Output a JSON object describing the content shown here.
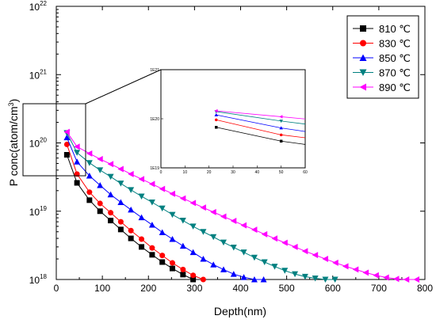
{
  "chart_data": {
    "type": "line",
    "xlabel": "Depth(nm)",
    "ylabel": "P conc(atom/cm^3)",
    "xlim": [
      0,
      800
    ],
    "ylim": [
      1e+18,
      1e+22
    ],
    "yscale": "log",
    "x_ticks": [
      "0",
      "100",
      "200",
      "300",
      "400",
      "500",
      "600",
      "700",
      "800"
    ],
    "y_ticks": [
      {
        "base": "10",
        "exp": "18"
      },
      {
        "base": "10",
        "exp": "19"
      },
      {
        "base": "10",
        "exp": "20"
      },
      {
        "base": "10",
        "exp": "21"
      },
      {
        "base": "10",
        "exp": "22"
      }
    ],
    "legend_position": "top-right",
    "series": [
      {
        "name": "810 ℃",
        "color": "#000000",
        "marker": "square",
        "points": [
          [
            23,
            6.7e+19
          ],
          [
            45,
            2.6e+19
          ],
          [
            72,
            1.45e+19
          ],
          [
            95,
            1e+19
          ],
          [
            118,
            7.3e+18
          ],
          [
            140,
            5.4e+18
          ],
          [
            162,
            4e+18
          ],
          [
            185,
            3e+18
          ],
          [
            208,
            2.3e+18
          ],
          [
            230,
            1.8e+18
          ],
          [
            252,
            1.45e+18
          ],
          [
            275,
            1.18e+18
          ],
          [
            297,
            1e+18
          ]
        ]
      },
      {
        "name": "830 ℃",
        "color": "#ff0000",
        "marker": "circle",
        "points": [
          [
            23,
            9.5e+19
          ],
          [
            45,
            3.5e+19
          ],
          [
            72,
            1.9e+19
          ],
          [
            95,
            1.3e+19
          ],
          [
            118,
            9.5e+18
          ],
          [
            140,
            7e+18
          ],
          [
            162,
            5.2e+18
          ],
          [
            185,
            3.9e+18
          ],
          [
            208,
            2.9e+18
          ],
          [
            230,
            2.25e+18
          ],
          [
            252,
            1.75e+18
          ],
          [
            275,
            1.4e+18
          ],
          [
            297,
            1.15e+18
          ],
          [
            319,
            1e+18
          ]
        ]
      },
      {
        "name": "850 ℃",
        "color": "#0000ff",
        "marker": "triangle-up",
        "points": [
          [
            23,
            1.2e+20
          ],
          [
            45,
            5.3e+19
          ],
          [
            72,
            3.3e+19
          ],
          [
            95,
            2.4e+19
          ],
          [
            118,
            1.75e+19
          ],
          [
            140,
            1.35e+19
          ],
          [
            162,
            1.05e+19
          ],
          [
            185,
            8.1e+18
          ],
          [
            208,
            6.3e+18
          ],
          [
            230,
            4.9e+18
          ],
          [
            252,
            3.9e+18
          ],
          [
            275,
            3.1e+18
          ],
          [
            297,
            2.5e+18
          ],
          [
            319,
            2e+18
          ],
          [
            341,
            1.65e+18
          ],
          [
            363,
            1.4e+18
          ],
          [
            385,
            1.2e+18
          ],
          [
            407,
            1.08e+18
          ],
          [
            430,
            1e+18
          ],
          [
            450,
            1e+18
          ]
        ]
      },
      {
        "name": "870 ℃",
        "color": "#008080",
        "marker": "triangle-down",
        "points": [
          [
            23,
            1.4e+20
          ],
          [
            45,
            7.2e+19
          ],
          [
            72,
            5.1e+19
          ],
          [
            95,
            4e+19
          ],
          [
            118,
            3.2e+19
          ],
          [
            140,
            2.55e+19
          ],
          [
            162,
            2.05e+19
          ],
          [
            185,
            1.65e+19
          ],
          [
            208,
            1.35e+19
          ],
          [
            230,
            1.1e+19
          ],
          [
            252,
            8.9e+18
          ],
          [
            275,
            7.3e+18
          ],
          [
            297,
            6e+18
          ],
          [
            319,
            5e+18
          ],
          [
            341,
            4.2e+18
          ],
          [
            363,
            3.5e+18
          ],
          [
            385,
            2.95e+18
          ],
          [
            407,
            2.5e+18
          ],
          [
            430,
            2.1e+18
          ],
          [
            452,
            1.8e+18
          ],
          [
            474,
            1.55e+18
          ],
          [
            496,
            1.35e+18
          ],
          [
            518,
            1.2e+18
          ],
          [
            540,
            1.1e+18
          ],
          [
            562,
            1.04e+18
          ],
          [
            584,
            1e+18
          ],
          [
            605,
            1e+18
          ]
        ]
      },
      {
        "name": "890 ℃",
        "color": "#ff00ff",
        "marker": "triangle-left",
        "points": [
          [
            23,
            1.45e+20
          ],
          [
            45,
            8.8e+19
          ],
          [
            72,
            7e+19
          ],
          [
            95,
            5.8e+19
          ],
          [
            118,
            4.9e+19
          ],
          [
            140,
            4.15e+19
          ],
          [
            162,
            3.5e+19
          ],
          [
            185,
            2.95e+19
          ],
          [
            208,
            2.5e+19
          ],
          [
            230,
            2.12e+19
          ],
          [
            252,
            1.8e+19
          ],
          [
            275,
            1.54e+19
          ],
          [
            297,
            1.32e+19
          ],
          [
            319,
            1.13e+19
          ],
          [
            341,
            9.7e+18
          ],
          [
            363,
            8.35e+18
          ],
          [
            385,
            7.2e+18
          ],
          [
            407,
            6.2e+18
          ],
          [
            430,
            5.35e+18
          ],
          [
            452,
            4.6e+18
          ],
          [
            474,
            3.98e+18
          ],
          [
            496,
            3.45e+18
          ],
          [
            518,
            3e+18
          ],
          [
            540,
            2.6e+18
          ],
          [
            562,
            2.28e+18
          ],
          [
            584,
            2e+18
          ],
          [
            606,
            1.76e+18
          ],
          [
            628,
            1.56e+18
          ],
          [
            650,
            1.4e+18
          ],
          [
            672,
            1.26e+18
          ],
          [
            694,
            1.15e+18
          ],
          [
            716,
            1.07e+18
          ],
          [
            738,
            1.02e+18
          ],
          [
            760,
            1e+18
          ],
          [
            782,
            1e+18
          ]
        ]
      }
    ],
    "inset": {
      "xlim": [
        0,
        60
      ],
      "ylim": [
        1e+19,
        1e+21
      ],
      "yscale": "log",
      "x_ticks": [
        "0",
        "10",
        "20",
        "30",
        "40",
        "50",
        "60"
      ],
      "y_ticks": [
        "1E19",
        "1E20",
        "1E21"
      ],
      "series": [
        {
          "name": "810 ℃",
          "color": "#000000",
          "marker": "square",
          "points": [
            [
              23,
              6.7e+19
            ],
            [
              50,
              3.5e+19
            ],
            [
              60,
              3e+19
            ]
          ]
        },
        {
          "name": "830 ℃",
          "color": "#ff0000",
          "marker": "circle",
          "points": [
            [
              23,
              9.5e+19
            ],
            [
              50,
              4.7e+19
            ],
            [
              60,
              4.1e+19
            ]
          ]
        },
        {
          "name": "850 ℃",
          "color": "#0000ff",
          "marker": "triangle-up",
          "points": [
            [
              23,
              1.2e+20
            ],
            [
              50,
              6.5e+19
            ],
            [
              60,
              5.5e+19
            ]
          ]
        },
        {
          "name": "870 ℃",
          "color": "#008080",
          "marker": "triangle-down",
          "points": [
            [
              23,
              1.4e+20
            ],
            [
              50,
              9e+19
            ],
            [
              60,
              7.8e+19
            ]
          ]
        },
        {
          "name": "890 ℃",
          "color": "#ff00ff",
          "marker": "triangle-left",
          "points": [
            [
              23,
              1.45e+20
            ],
            [
              50,
              1.1e+20
            ],
            [
              60,
              9.9e+19
            ]
          ]
        }
      ]
    }
  }
}
